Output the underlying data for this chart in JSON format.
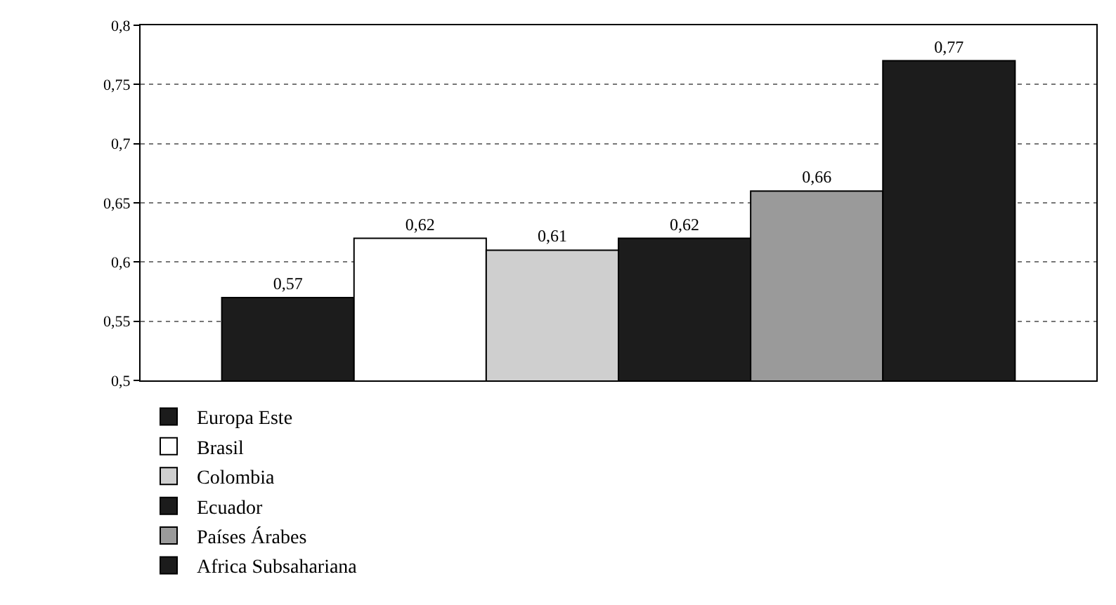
{
  "chart_data": {
    "type": "bar",
    "categories": [
      null
    ],
    "series": [
      {
        "name": "Europa Este",
        "color": "#1c1c1c",
        "values": [
          0.57
        ],
        "value_labels": [
          "0,57"
        ]
      },
      {
        "name": "Brasil",
        "color": "#ffffff",
        "values": [
          0.62
        ],
        "value_labels": [
          "0,62"
        ]
      },
      {
        "name": "Colombia",
        "color": "#cfcfcf",
        "values": [
          0.61
        ],
        "value_labels": [
          "0,61"
        ]
      },
      {
        "name": "Ecuador",
        "color": "#1c1c1c",
        "values": [
          0.62
        ],
        "value_labels": [
          "0,62"
        ]
      },
      {
        "name": "Países Árabes",
        "color": "#9a9a9a",
        "values": [
          0.66
        ],
        "value_labels": [
          "0,66"
        ]
      },
      {
        "name": "Africa Subsahariana",
        "color": "#1c1c1c",
        "values": [
          0.77
        ],
        "value_labels": [
          "0,77"
        ]
      }
    ],
    "ylim": [
      0.5,
      0.8
    ],
    "yticks": [
      {
        "value": 0.5,
        "label": "0,5"
      },
      {
        "value": 0.55,
        "label": "0,55"
      },
      {
        "value": 0.6,
        "label": "0,6"
      },
      {
        "value": 0.65,
        "label": "0,65"
      },
      {
        "value": 0.7,
        "label": "0,7"
      },
      {
        "value": 0.75,
        "label": "0,75"
      },
      {
        "value": 0.8,
        "label": "0,8"
      }
    ],
    "grid": "y",
    "legend": "bottom"
  }
}
